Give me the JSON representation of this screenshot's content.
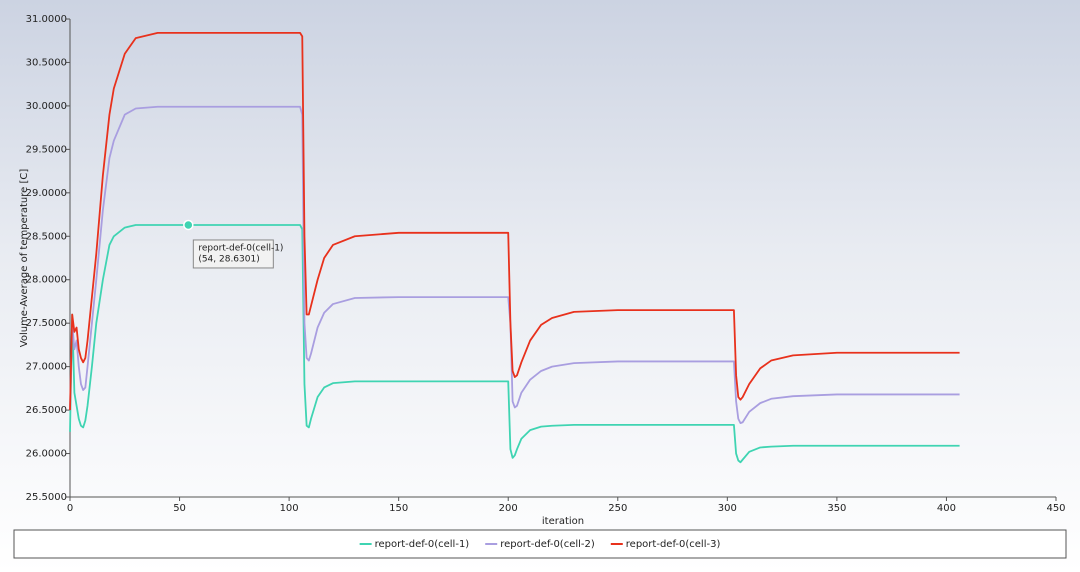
{
  "chart_data": {
    "type": "line",
    "x_label": "iteration",
    "y_label": "Volume-Average of temperature [C]",
    "xlim": [
      0,
      450
    ],
    "xticks": [
      0,
      50,
      100,
      150,
      200,
      250,
      300,
      350,
      400,
      450
    ],
    "ylim": [
      25.5,
      31
    ],
    "yticks": [
      {
        "value": 25.5,
        "label": "25.5000"
      },
      {
        "value": 26,
        "label": "26.0000"
      },
      {
        "value": 26.5,
        "label": "26.5000"
      },
      {
        "value": 27,
        "label": "27.0000"
      },
      {
        "value": 27.5,
        "label": "27.5000"
      },
      {
        "value": 28,
        "label": "28.0000"
      },
      {
        "value": 28.5,
        "label": "28.5000"
      },
      {
        "value": 29,
        "label": "29.0000"
      },
      {
        "value": 29.5,
        "label": "29.5000"
      },
      {
        "value": 30,
        "label": "30.0000"
      },
      {
        "value": 30.5,
        "label": "30.5000"
      },
      {
        "value": 31,
        "label": "31.0000"
      }
    ],
    "legend_position": "bottom",
    "x": [
      0,
      1,
      2,
      3,
      4,
      5,
      6,
      7,
      8,
      10,
      12,
      15,
      18,
      20,
      25,
      30,
      40,
      54,
      70,
      90,
      105,
      106,
      107,
      108,
      109,
      110,
      113,
      116,
      120,
      130,
      150,
      180,
      200,
      201,
      202,
      203,
      204,
      206,
      210,
      215,
      220,
      230,
      250,
      280,
      303,
      304,
      305,
      306,
      307,
      310,
      315,
      320,
      330,
      350,
      380,
      406
    ],
    "series": [
      {
        "name": "report-def-0(cell-1)",
        "color": "#3fd4b2",
        "values": [
          26.25,
          27.6,
          26.7,
          26.55,
          26.4,
          26.32,
          26.3,
          26.38,
          26.55,
          27.0,
          27.5,
          28.0,
          28.4,
          28.5,
          28.6,
          28.63,
          28.63,
          28.6301,
          28.63,
          28.63,
          28.63,
          28.58,
          26.8,
          26.32,
          26.3,
          26.4,
          26.65,
          26.76,
          26.81,
          26.83,
          26.83,
          26.83,
          26.83,
          26.05,
          25.95,
          25.98,
          26.05,
          26.17,
          26.27,
          26.31,
          26.32,
          26.33,
          26.33,
          26.33,
          26.33,
          26.0,
          25.92,
          25.9,
          25.93,
          26.02,
          26.07,
          26.08,
          26.09,
          26.09,
          26.09,
          26.09
        ]
      },
      {
        "name": "report-def-0(cell-2)",
        "color": "#a99ee0",
        "values": [
          26.5,
          27.5,
          27.2,
          27.3,
          27.0,
          26.8,
          26.73,
          26.76,
          27.0,
          27.5,
          28.0,
          28.8,
          29.4,
          29.6,
          29.9,
          29.97,
          29.99,
          29.99,
          29.99,
          29.99,
          29.99,
          29.9,
          27.5,
          27.1,
          27.07,
          27.15,
          27.45,
          27.62,
          27.72,
          27.79,
          27.8,
          27.8,
          27.8,
          27.5,
          26.6,
          26.53,
          26.55,
          26.7,
          26.85,
          26.95,
          27.0,
          27.04,
          27.06,
          27.06,
          27.06,
          26.6,
          26.4,
          26.35,
          26.36,
          26.48,
          26.58,
          26.63,
          26.66,
          26.68,
          26.68,
          26.68
        ]
      },
      {
        "name": "report-def-0(cell-3)",
        "color": "#e8311c",
        "values": [
          26.5,
          27.6,
          27.4,
          27.45,
          27.2,
          27.1,
          27.05,
          27.1,
          27.3,
          27.8,
          28.3,
          29.2,
          29.9,
          30.2,
          30.6,
          30.78,
          30.84,
          30.84,
          30.84,
          30.84,
          30.84,
          30.8,
          28.5,
          27.6,
          27.6,
          27.7,
          28.0,
          28.25,
          28.4,
          28.5,
          28.54,
          28.54,
          28.54,
          27.5,
          26.95,
          26.88,
          26.9,
          27.05,
          27.3,
          27.48,
          27.56,
          27.63,
          27.65,
          27.65,
          27.65,
          26.9,
          26.65,
          26.62,
          26.65,
          26.8,
          26.98,
          27.07,
          27.13,
          27.16,
          27.16,
          27.16
        ]
      }
    ],
    "annotation": {
      "lines": [
        "report-def-0(cell-1)",
        "(54, 28.6301)"
      ],
      "x": 54,
      "y": 28.6301
    }
  }
}
